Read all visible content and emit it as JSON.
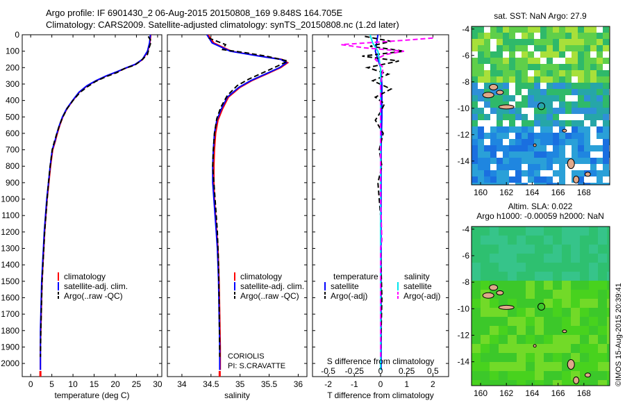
{
  "header": {
    "line1": "Argo profile: IF 6901430_2 06-Aug-2015 20150808_169 9.848S 164.705E",
    "line2": "Climatology: CARS2009. Satellite-adjusted climatology: synTS_20150808.nc (1.2d later)"
  },
  "chart_data": [
    {
      "type": "line",
      "name": "temperature-profile",
      "xlabel": "temperature (deg C)",
      "ylabel": "",
      "xlim": [
        -2,
        31
      ],
      "ylim": [
        0,
        2080
      ],
      "y_reversed": true,
      "xticks": [
        "0",
        "5",
        "10",
        "15",
        "20",
        "25",
        "30"
      ],
      "yticks": [
        "0",
        "100",
        "200",
        "300",
        "400",
        "500",
        "600",
        "700",
        "800",
        "900",
        "1000",
        "1100",
        "1200",
        "1300",
        "1400",
        "1500",
        "1600",
        "1700",
        "1800",
        "1900",
        "2000"
      ],
      "legend": [
        "climatology",
        "satellite-adj. clim.",
        "Argo(..raw -QC)"
      ],
      "series": [
        {
          "name": "climatology",
          "color": "#ff0000",
          "x": [
            28.4,
            28.2,
            27.7,
            26.5,
            24.8,
            22.8,
            20.5,
            18.0,
            15.5,
            13.4,
            11.5,
            10.0,
            8.6,
            7.6,
            6.9,
            6.3,
            5.8,
            5.2,
            4.7,
            4.3,
            3.9,
            3.6,
            3.3,
            3.1,
            2.9,
            2.7,
            2.6,
            2.5,
            2.4,
            2.3,
            2.3
          ],
          "y": [
            0,
            50,
            100,
            150,
            180,
            200,
            225,
            250,
            280,
            310,
            350,
            400,
            450,
            500,
            550,
            600,
            650,
            700,
            800,
            900,
            1000,
            1100,
            1200,
            1300,
            1400,
            1500,
            1600,
            1700,
            1800,
            1900,
            2040
          ]
        },
        {
          "name": "satellite-adj. clim.",
          "color": "#0000ff",
          "x": [
            28.3,
            28.1,
            27.6,
            26.4,
            24.7,
            22.7,
            20.4,
            17.9,
            15.4,
            13.3,
            11.4,
            9.9,
            8.5,
            7.5,
            6.8,
            6.2,
            5.7,
            5.1,
            4.6,
            4.2,
            3.8,
            3.5,
            3.2,
            3.0,
            2.8,
            2.6,
            2.5,
            2.4,
            2.3,
            2.3,
            2.3
          ],
          "y": [
            0,
            50,
            100,
            150,
            180,
            200,
            225,
            250,
            280,
            310,
            350,
            400,
            450,
            500,
            550,
            600,
            650,
            700,
            800,
            900,
            1000,
            1100,
            1200,
            1300,
            1400,
            1500,
            1600,
            1700,
            1800,
            1900,
            2040
          ]
        },
        {
          "name": "Argo(..raw -QC)",
          "color": "#000000",
          "dashed": true,
          "x": [
            27.8,
            28.5,
            28.0,
            27.6,
            26.0,
            24.6,
            22.2,
            20.4,
            17.8,
            15.3,
            13.5,
            11.7,
            10.0,
            8.6,
            7.6,
            6.8,
            6.2,
            5.6,
            5.1,
            4.6,
            4.2,
            3.9,
            3.6,
            3.3,
            3.1,
            2.9,
            2.7,
            2.6,
            2.5,
            2.4,
            2.3
          ],
          "y": [
            10,
            40,
            80,
            120,
            160,
            185,
            205,
            230,
            255,
            285,
            315,
            350,
            400,
            450,
            500,
            550,
            600,
            650,
            700,
            800,
            900,
            1000,
            1100,
            1200,
            1300,
            1400,
            1500,
            1600,
            1700,
            1800,
            1960
          ]
        }
      ]
    },
    {
      "type": "line",
      "name": "salinity-profile",
      "xlabel": "salinity",
      "ylabel": "",
      "xlim": [
        33.75,
        36.15
      ],
      "ylim": [
        0,
        2080
      ],
      "y_reversed": true,
      "xticks": [
        "34",
        "34.5",
        "35",
        "35.5",
        "36"
      ],
      "legend": [
        "climatology",
        "satellite-adj. clim.",
        "Argo(..raw -QC)"
      ],
      "series": [
        {
          "name": "climatology",
          "color": "#ff0000",
          "x": [
            34.45,
            34.55,
            34.85,
            35.35,
            35.72,
            35.82,
            35.7,
            35.45,
            35.2,
            35.0,
            34.8,
            34.7,
            34.62,
            34.58,
            34.56,
            34.55,
            34.55,
            34.56,
            34.58,
            34.6,
            34.62,
            34.63,
            34.64,
            34.65,
            34.66,
            34.66
          ],
          "y": [
            0,
            50,
            100,
            130,
            150,
            170,
            200,
            240,
            280,
            320,
            380,
            450,
            520,
            600,
            700,
            800,
            900,
            1000,
            1100,
            1200,
            1300,
            1400,
            1500,
            1700,
            1900,
            2040
          ]
        },
        {
          "name": "satellite-adj. clim.",
          "color": "#0000ff",
          "x": [
            34.43,
            34.52,
            34.83,
            35.33,
            35.7,
            35.8,
            35.68,
            35.43,
            35.18,
            34.98,
            34.78,
            34.68,
            34.6,
            34.56,
            34.54,
            34.53,
            34.53,
            34.55,
            34.57,
            34.59,
            34.61,
            34.62,
            34.63,
            34.64,
            34.65,
            34.65
          ],
          "y": [
            0,
            50,
            100,
            130,
            150,
            170,
            200,
            240,
            280,
            320,
            380,
            450,
            520,
            600,
            700,
            800,
            900,
            1000,
            1100,
            1200,
            1300,
            1400,
            1500,
            1700,
            1900,
            2040
          ]
        },
        {
          "name": "Argo(..raw -QC)",
          "color": "#000000",
          "dashed": true,
          "x": [
            34.46,
            34.75,
            34.7,
            35.1,
            35.45,
            35.82,
            35.65,
            35.4,
            35.15,
            34.95,
            34.78,
            34.67,
            34.6,
            34.56,
            34.54,
            34.53,
            34.55,
            34.57,
            34.59,
            34.61,
            34.62,
            34.63,
            34.64,
            34.65
          ],
          "y": [
            20,
            60,
            90,
            110,
            130,
            160,
            190,
            230,
            270,
            310,
            370,
            440,
            510,
            600,
            700,
            800,
            900,
            1000,
            1100,
            1200,
            1300,
            1400,
            1600,
            1960
          ]
        }
      ],
      "annotation": [
        "CORIOLIS",
        "PI: S.CRAVATTE"
      ]
    },
    {
      "type": "line",
      "name": "difference-profile",
      "xlabel": "T difference from climatology",
      "xlabel_top": "S difference from climatology",
      "xlim": [
        -2.6,
        2.6
      ],
      "ylim": [
        0,
        2080
      ],
      "y_reversed": true,
      "xticks": [
        "-2",
        "-1",
        "0",
        "1",
        "2"
      ],
      "xticks_s": [
        "-0.5",
        "-0.25",
        "0",
        "0.25",
        "0.5"
      ],
      "legend_headers": [
        "temperature",
        "salinity"
      ],
      "legend": [
        "satellite",
        "Argo(-adj)",
        "satellite",
        "Argo(-adj)"
      ],
      "series": [
        {
          "name": "temperature satellite",
          "color": "#0000ff",
          "x": [
            -0.1,
            -0.15,
            -0.2,
            -0.1,
            0.0,
            0.05,
            0.05,
            0.05,
            0.02,
            0.02,
            0.02,
            0.02,
            0.02,
            0.02
          ],
          "y": [
            0,
            50,
            100,
            150,
            200,
            300,
            400,
            500,
            700,
            900,
            1200,
            1500,
            1800,
            2040
          ]
        },
        {
          "name": "temperature Argo(-adj)",
          "color": "#000000",
          "dashed": true,
          "x": [
            -0.6,
            0.4,
            -0.4,
            0.9,
            -0.7,
            0.7,
            -0.5,
            0.3,
            -0.3,
            0.4,
            -0.2,
            0.15,
            0.0,
            -0.2,
            0.1,
            -0.05,
            0.05,
            -0.1,
            0.0,
            0.0,
            0.05,
            0.0
          ],
          "y": [
            10,
            40,
            70,
            100,
            130,
            160,
            200,
            240,
            280,
            330,
            380,
            420,
            470,
            520,
            600,
            700,
            800,
            900,
            1100,
            1300,
            1600,
            1960
          ]
        },
        {
          "name": "salinity satellite",
          "color": "#00e5ee",
          "x": [
            -0.4,
            -0.3,
            -0.1,
            -0.05,
            0.0,
            0.0,
            0.0,
            0.0,
            0.0,
            0.0,
            0.0,
            0.0,
            0.0,
            0.0
          ],
          "y": [
            0,
            50,
            100,
            150,
            200,
            300,
            400,
            500,
            700,
            900,
            1200,
            1500,
            1800,
            2040
          ]
        },
        {
          "name": "salinity Argo(-adj)",
          "color": "#ff00ff",
          "dashed": true,
          "x": [
            2.0,
            0.8,
            -1.5,
            -0.6,
            0.9,
            0.2,
            -0.2,
            0.1,
            0.0,
            0.0,
            0.0,
            0.0,
            0.05,
            0.0,
            0.0,
            0.0,
            0.0
          ],
          "y": [
            20,
            35,
            60,
            80,
            100,
            120,
            150,
            200,
            300,
            500,
            800,
            1000,
            1250,
            1300,
            1500,
            1700,
            1960
          ]
        }
      ]
    },
    {
      "type": "heatmap",
      "name": "sst-map",
      "title": "sat. SST: NaN Argo: 27.9",
      "xticks": [
        "160",
        "162",
        "164",
        "166",
        "168"
      ],
      "yticks": [
        "-4",
        "-6",
        "-8",
        "-10",
        "-12",
        "-14"
      ],
      "xlim": [
        159.3,
        170.0
      ],
      "ylim": [
        -15.8,
        -3.8
      ],
      "argo_position": [
        164.705,
        -9.848
      ]
    },
    {
      "type": "heatmap",
      "name": "sla-map",
      "title": "Altim. SLA: 0.022",
      "subtitle": "Argo h1000: -0.00059 h2000: NaN",
      "xticks": [
        "160",
        "162",
        "164",
        "166",
        "168"
      ],
      "yticks": [
        "-4",
        "-6",
        "-8",
        "-10",
        "-12",
        "-14"
      ],
      "xlim": [
        159.3,
        170.0
      ],
      "ylim": [
        -15.8,
        -3.8
      ],
      "argo_position": [
        164.705,
        -9.848
      ]
    }
  ],
  "credit": "©IMOS 15-Aug-2015 20:39:41"
}
